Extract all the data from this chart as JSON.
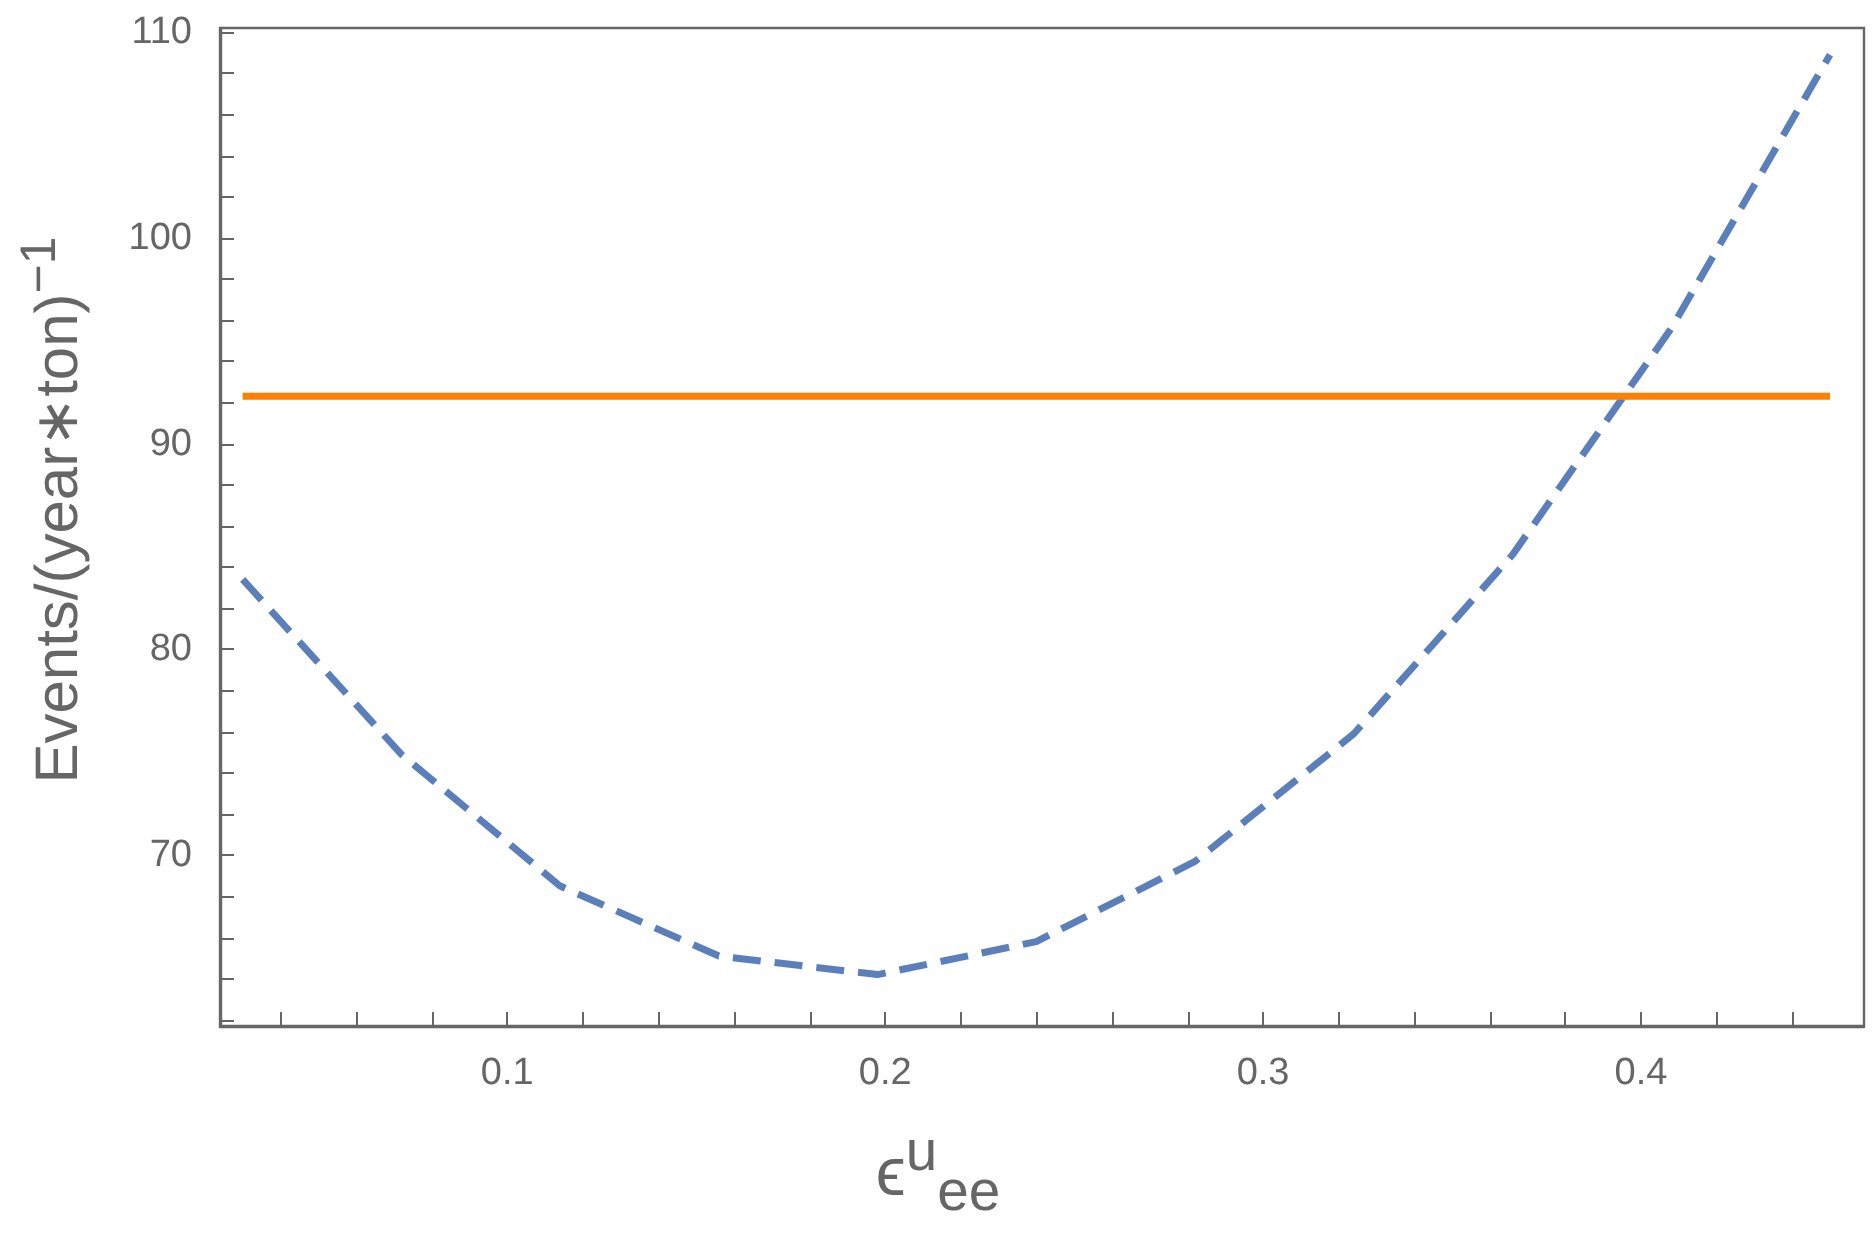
{
  "chart_data": {
    "type": "line",
    "xlabel": "ϵ$^{u}$$_{ee}$",
    "ylabel": "Events/(year∗ton)$^{−1}$",
    "series": [
      {
        "color": "#5b7fbb",
        "line_style": "dashed",
        "x": [
          0.03,
          0.072,
          0.114,
          0.156,
          0.198,
          0.24,
          0.282,
          0.324,
          0.366,
          0.408,
          0.45
        ],
        "values": [
          83.4,
          74.9,
          68.5,
          65.1,
          64.2,
          65.8,
          69.7,
          75.9,
          84.6,
          95.6,
          108.9
        ]
      },
      {
        "color": "#ff8000",
        "line_style": "solid",
        "x": [
          0.03,
          0.45
        ],
        "values": [
          92.3,
          92.3
        ]
      }
    ],
    "xlim": [
      0.024,
      0.459
    ],
    "ylim": [
      61.7,
      110.2
    ],
    "xticks": [
      {
        "value": 0.04,
        "label": null
      },
      {
        "value": 0.06,
        "label": null
      },
      {
        "value": 0.08,
        "label": null
      },
      0.1,
      {
        "value": 0.12,
        "label": null
      },
      {
        "value": 0.14,
        "label": null
      },
      {
        "value": 0.16,
        "label": null
      },
      {
        "value": 0.18,
        "label": null
      },
      0.2,
      {
        "value": 0.22,
        "label": null
      },
      {
        "value": 0.24,
        "label": null
      },
      {
        "value": 0.26,
        "label": null
      },
      {
        "value": 0.28,
        "label": null
      },
      0.3,
      {
        "value": 0.32,
        "label": null
      },
      {
        "value": 0.34,
        "label": null
      },
      {
        "value": 0.36,
        "label": null
      },
      {
        "value": 0.38,
        "label": null
      },
      0.4,
      {
        "value": 0.42,
        "label": null
      },
      {
        "value": 0.44,
        "label": null
      }
    ],
    "yticks": [
      {
        "value": 62,
        "label": null
      },
      {
        "value": 64,
        "label": null
      },
      {
        "value": 66,
        "label": null
      },
      {
        "value": 68,
        "label": null
      },
      70,
      {
        "value": 72,
        "label": null
      },
      {
        "value": 74,
        "label": null
      },
      {
        "value": 76,
        "label": null
      },
      {
        "value": 78,
        "label": null
      },
      80,
      {
        "value": 82,
        "label": null
      },
      {
        "value": 84,
        "label": null
      },
      {
        "value": 86,
        "label": null
      },
      {
        "value": 88,
        "label": null
      },
      90,
      {
        "value": 92,
        "label": null
      },
      {
        "value": 94,
        "label": null
      },
      {
        "value": 96,
        "label": null
      },
      {
        "value": 98,
        "label": null
      },
      100,
      {
        "value": 102,
        "label": null
      },
      {
        "value": 104,
        "label": null
      },
      {
        "value": 106,
        "label": null
      },
      {
        "value": 108,
        "label": null
      },
      110
    ],
    "marker": "none",
    "grid": false
  }
}
